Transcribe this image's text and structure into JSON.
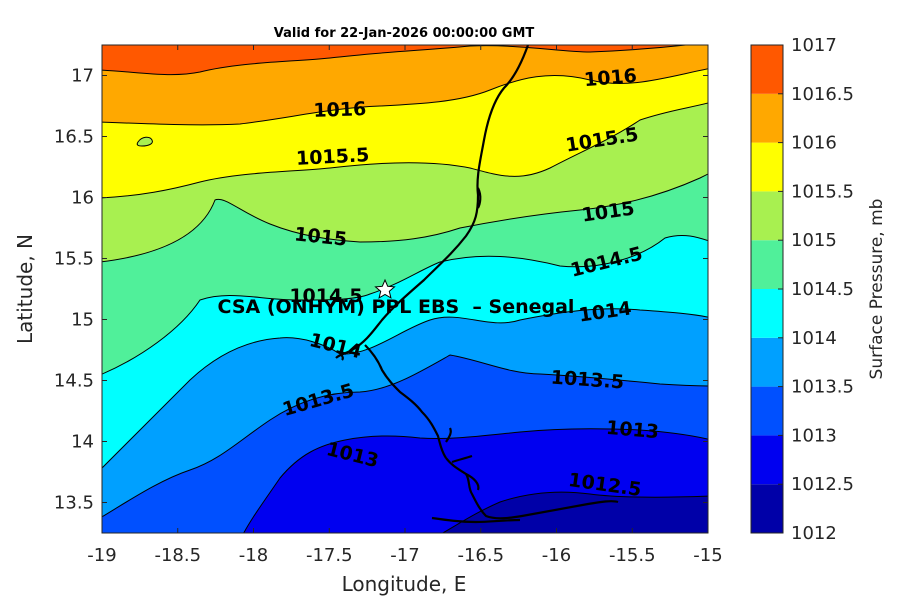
{
  "title": "Valid for 22-Jan-2026 00:00:00 GMT",
  "xlabel": "Longitude, E",
  "ylabel": "Latitude, N",
  "x_ticks": [
    "-19",
    "-18.5",
    "-18",
    "-17.5",
    "-17",
    "-16.5",
    "-16",
    "-15.5",
    "-15"
  ],
  "y_ticks": [
    "13.5",
    "14",
    "14.5",
    "15",
    "15.5",
    "16",
    "16.5",
    "17"
  ],
  "site_label": "CSA (ONHYM) PPL EBS  – Senegal",
  "colorbar": {
    "label": "Surface Pressure, mb",
    "ticks": [
      "1012",
      "1012.5",
      "1013",
      "1013.5",
      "1014",
      "1014.5",
      "1015",
      "1015.5",
      "1016",
      "1016.5",
      "1017"
    ],
    "colors": [
      "#0000a8",
      "#0000f0",
      "#0050ff",
      "#00a0ff",
      "#00ffff",
      "#50f09a",
      "#a8f050",
      "#ffff00",
      "#ffa800",
      "#ff5800",
      "#ff0000"
    ]
  },
  "contour_labels": [
    {
      "text": "1016"
    },
    {
      "text": "1016"
    },
    {
      "text": "1015.5"
    },
    {
      "text": "1015.5"
    },
    {
      "text": "1015"
    },
    {
      "text": "1015"
    },
    {
      "text": "1014.5"
    },
    {
      "text": "1014.5"
    },
    {
      "text": "1014"
    },
    {
      "text": "1014"
    },
    {
      "text": "1013.5"
    },
    {
      "text": "1013.5"
    },
    {
      "text": "1013"
    },
    {
      "text": "1013"
    },
    {
      "text": "1012.5"
    }
  ],
  "chart_data": {
    "type": "heatmap",
    "title": "Valid for 22-Jan-2026 00:00:00 GMT",
    "xlabel": "Longitude, E",
    "ylabel": "Latitude, N",
    "xlim": [
      -19,
      -15
    ],
    "ylim": [
      13.25,
      17.25
    ],
    "colorbar_label": "Surface Pressure, mb",
    "clim": [
      1012,
      1017
    ],
    "contour_levels": [
      1012.5,
      1013,
      1013.5,
      1014,
      1014.5,
      1015,
      1015.5,
      1016
    ],
    "marker": {
      "lon": -17.13,
      "lat": 15.23,
      "label": "CSA (ONHYM) PPL EBS  – Senegal",
      "symbol": "star"
    }
  }
}
